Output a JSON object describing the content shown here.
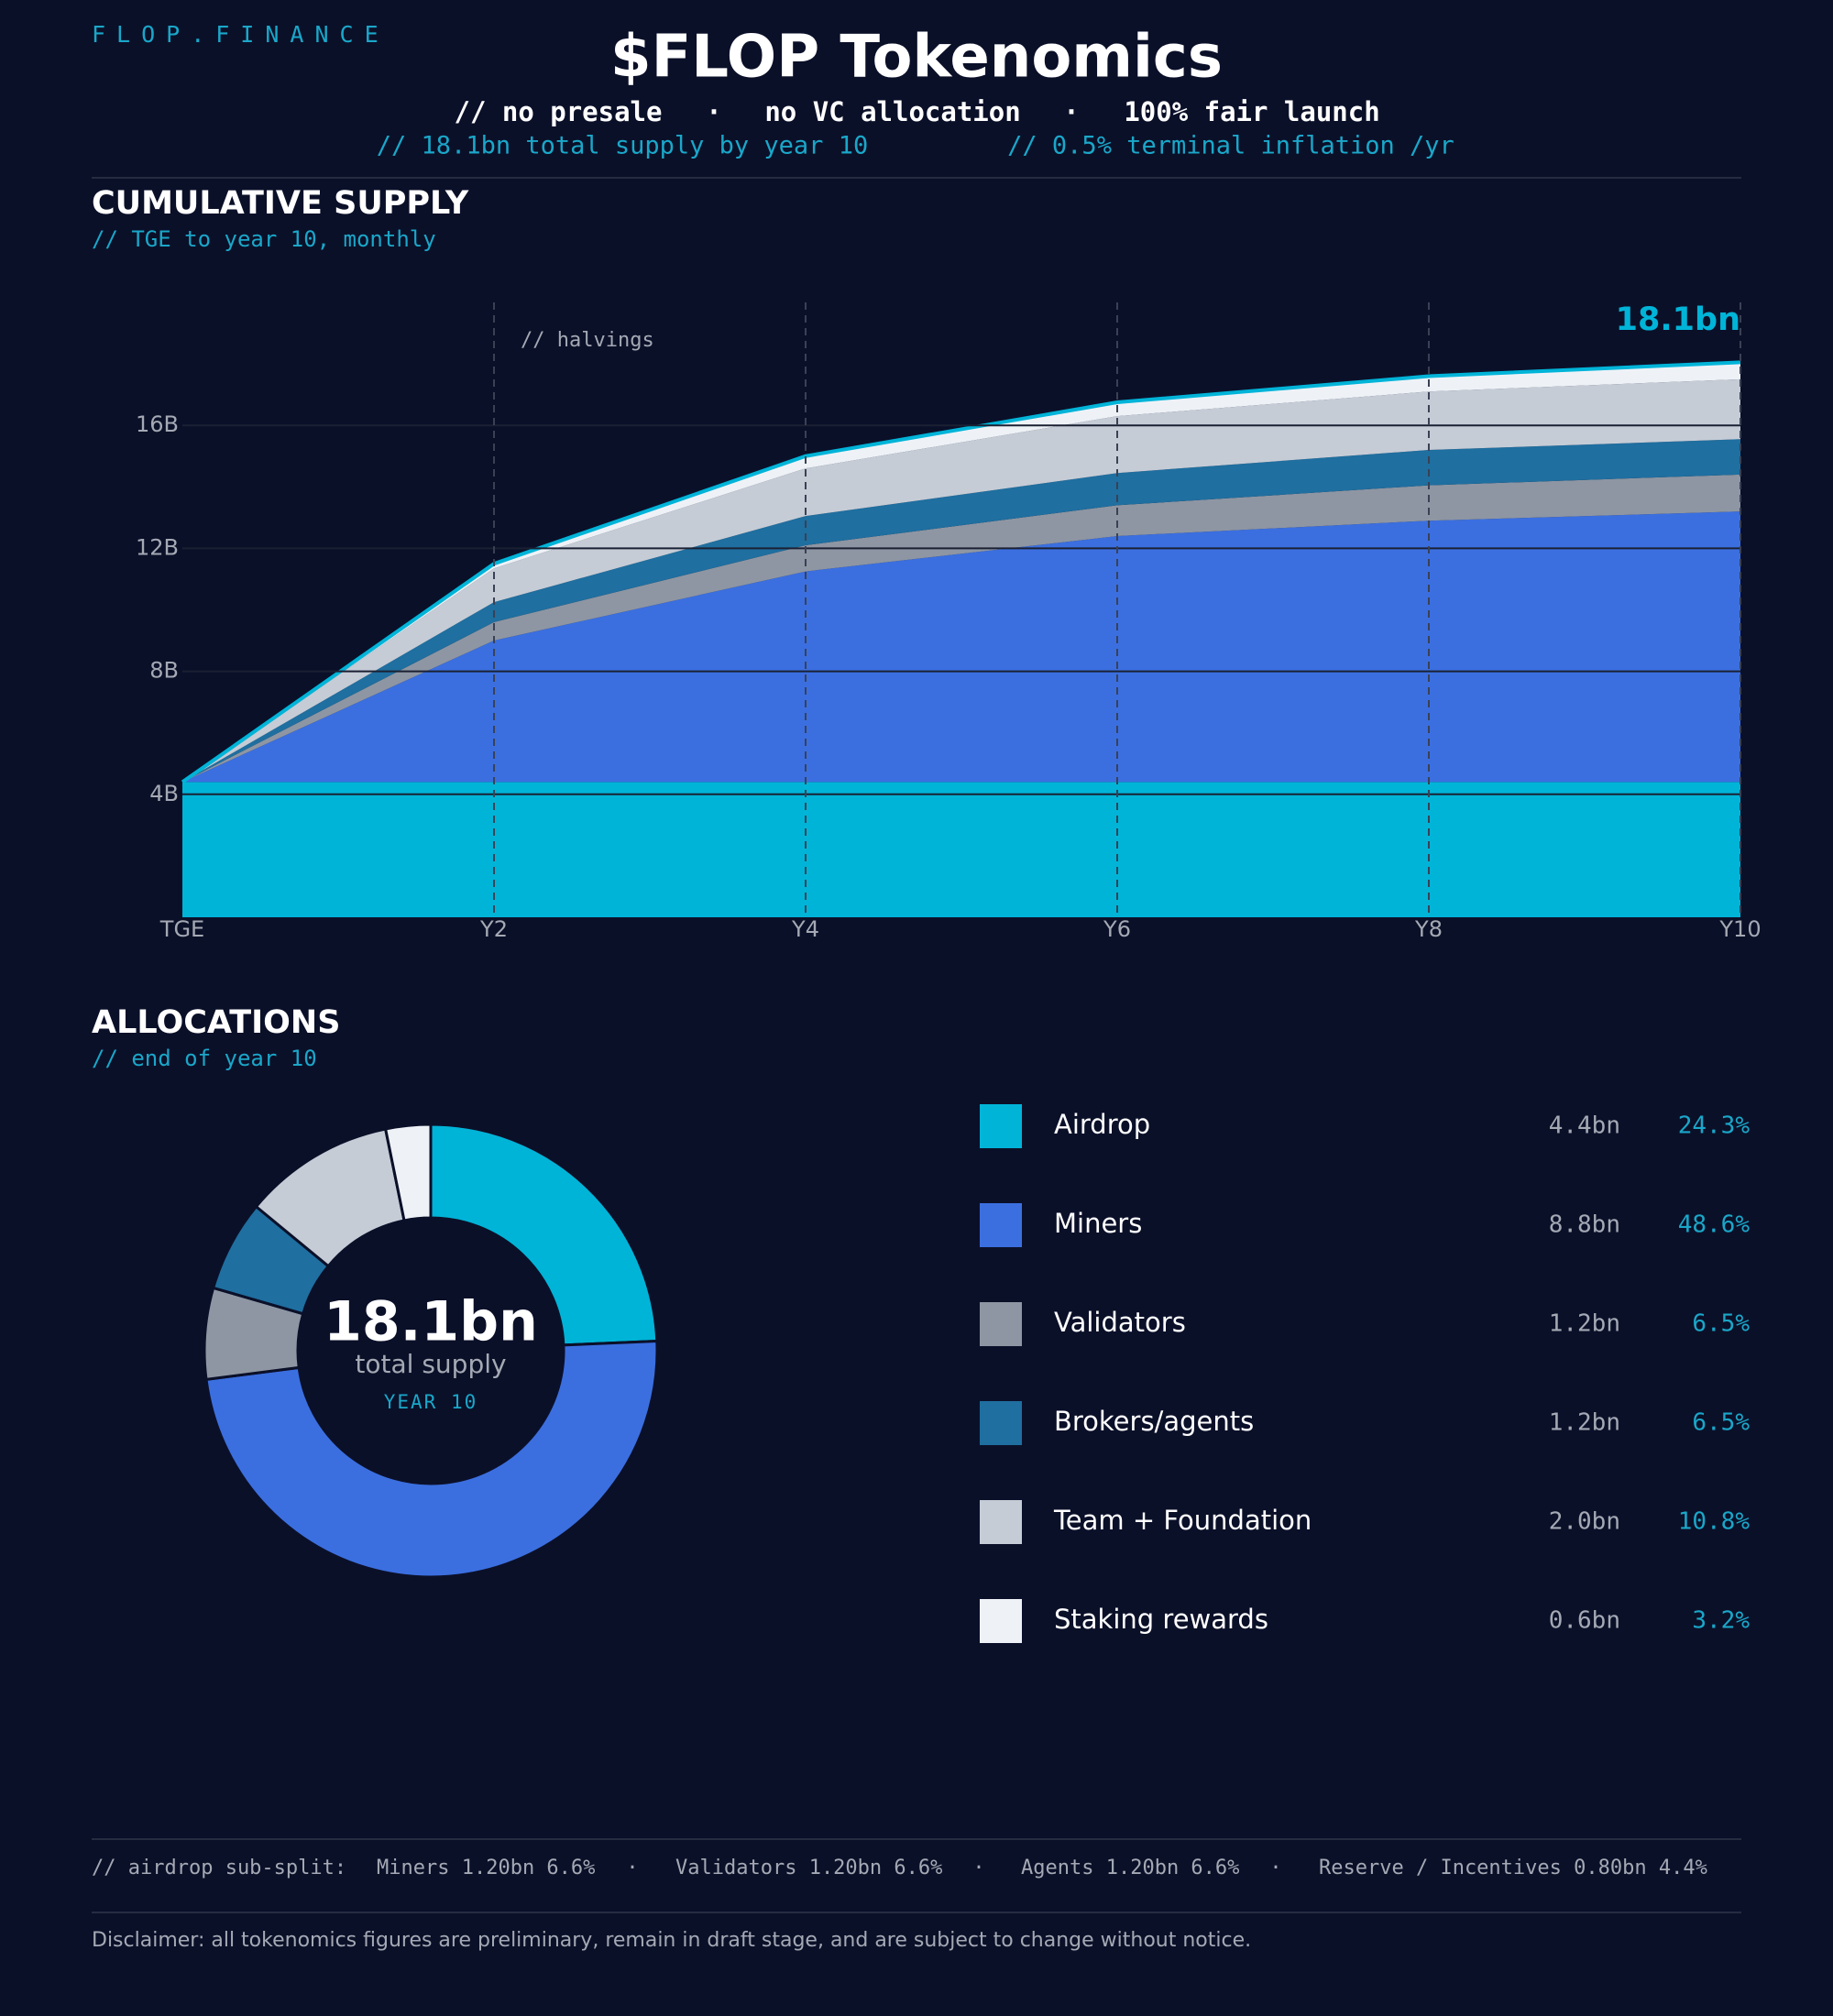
{
  "brand": "FLOP.FINANCE",
  "title": "$FLOP Tokenomics",
  "separator": "·",
  "taglines": [
    "// no presale",
    "no VC allocation",
    "100% fair launch"
  ],
  "facts": [
    "// 18.1bn total supply by year 10",
    "// 0.5% terminal inflation /yr"
  ],
  "chart_data": [
    {
      "type": "stacked_area",
      "title": "CUMULATIVE SUPPLY",
      "subtitle": "// TGE to year 10, monthly",
      "annotation": "// halvings",
      "end_label": "18.1bn",
      "categories": [
        "TGE",
        "Y2",
        "Y4",
        "Y6",
        "Y8",
        "Y10"
      ],
      "series": [
        {
          "name": "Airdrop",
          "color": "#00b4d8",
          "values": [
            4.4,
            4.4,
            4.4,
            4.4,
            4.4,
            4.4
          ]
        },
        {
          "name": "Miners",
          "color": "#3b6fe0",
          "values": [
            0,
            4.6,
            6.85,
            8.0,
            8.5,
            8.8
          ]
        },
        {
          "name": "Validators",
          "color": "#8e96a3",
          "values": [
            0,
            0.6,
            0.85,
            1.0,
            1.15,
            1.2
          ]
        },
        {
          "name": "Brokers/agents",
          "color": "#1f6fa0",
          "values": [
            0,
            0.65,
            0.95,
            1.05,
            1.15,
            1.15
          ]
        },
        {
          "name": "Team + Foundation",
          "color": "#c5ccd6",
          "values": [
            0,
            1.1,
            1.55,
            1.85,
            1.9,
            1.95
          ]
        },
        {
          "name": "Staking rewards",
          "color": "#eef2f7",
          "values": [
            0,
            0.15,
            0.4,
            0.45,
            0.5,
            0.55
          ]
        }
      ],
      "outline_color": "#00b4d8",
      "ylim": [
        0,
        20
      ],
      "yticks": [
        {
          "value": 4,
          "label": "4B"
        },
        {
          "value": 8,
          "label": "8B"
        },
        {
          "value": 12,
          "label": "12B"
        },
        {
          "value": 16,
          "label": "16B"
        }
      ],
      "grid": true
    },
    {
      "type": "donut",
      "title": "ALLOCATIONS",
      "subtitle": "// end of year 10",
      "center_value": "18.1bn",
      "center_label": "total supply",
      "center_note": "YEAR 10",
      "categories": [
        "Airdrop",
        "Miners",
        "Validators",
        "Brokers/agents",
        "Team + Foundation",
        "Staking rewards"
      ],
      "colors": [
        "#00b4d8",
        "#3b6fe0",
        "#8e96a3",
        "#1f6fa0",
        "#c5ccd6",
        "#eef2f7"
      ],
      "values": [
        24.3,
        48.6,
        6.5,
        6.5,
        10.8,
        3.2
      ],
      "value_labels": [
        "24.3%",
        "48.6%",
        "6.5%",
        "6.5%",
        "10.8%",
        "3.2%"
      ],
      "amount_labels": [
        "4.4bn",
        "8.8bn",
        "1.2bn",
        "1.2bn",
        "2.0bn",
        "0.6bn"
      ]
    }
  ],
  "footnote": {
    "label": "// airdrop sub-split:",
    "items": [
      "Miners 1.20bn 6.6%",
      "Validators 1.20bn 6.6%",
      "Agents 1.20bn 6.6%",
      "Reserve / Incentives 0.80bn 4.4%"
    ]
  },
  "disclaimer": "Disclaimer: all tokenomics figures are preliminary, remain in draft stage, and are subject to change without notice."
}
